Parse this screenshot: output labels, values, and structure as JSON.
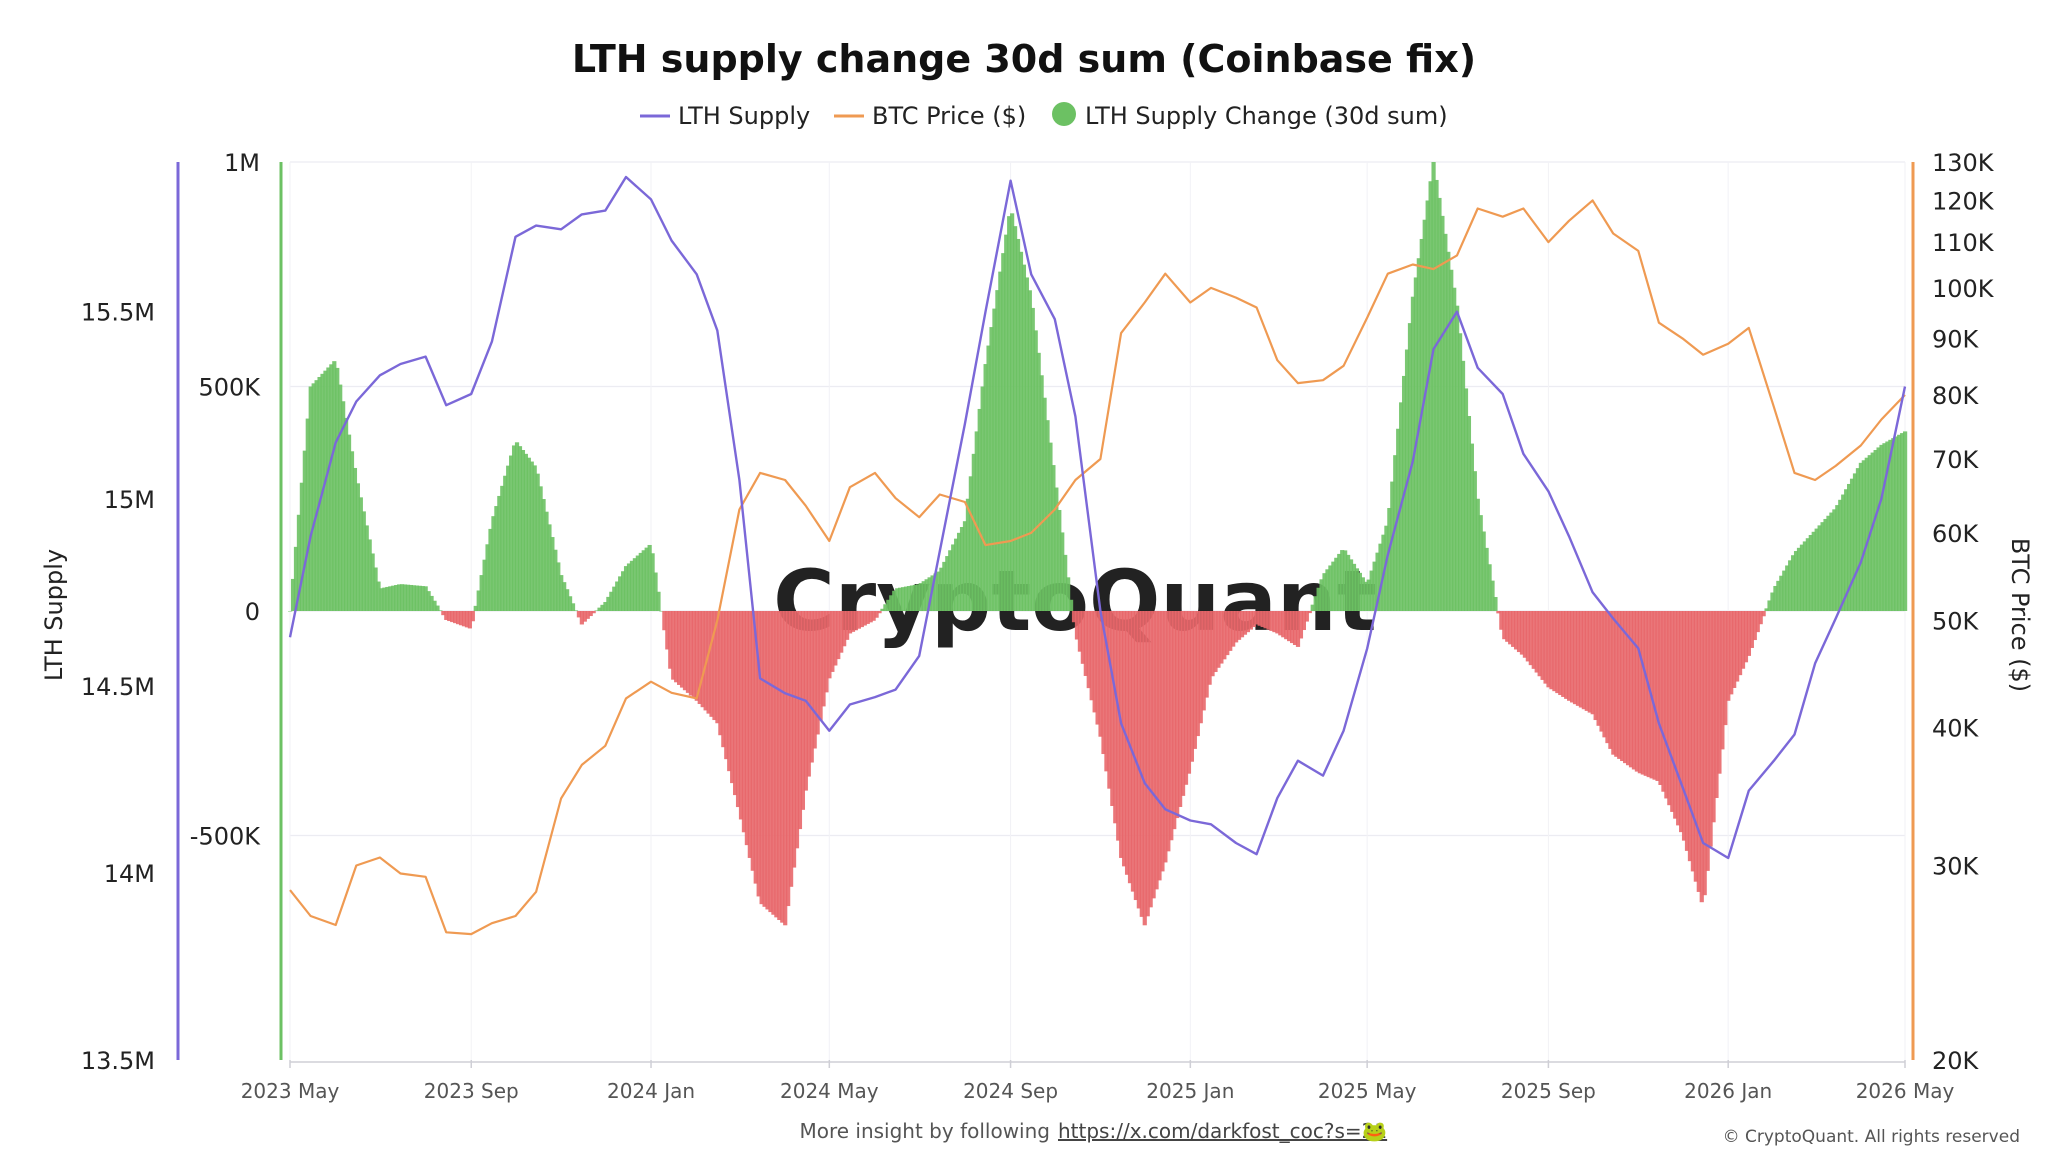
{
  "chart_data": {
    "type": "line",
    "title": "LTH supply change 30d sum (Coinbase fix)",
    "legend": [
      {
        "label": "LTH Supply",
        "color": "#7b68d8",
        "marker": "line"
      },
      {
        "label": "BTC Price ($)",
        "color": "#ef9a52",
        "marker": "line"
      },
      {
        "label": "LTH Supply Change (30d sum)",
        "color": "#6cc163",
        "marker": "circle"
      }
    ],
    "legend_position": "top-center",
    "y_left_outer": {
      "label": "LTH Supply",
      "ticks": [
        "15.5M",
        "15M",
        "14.5M",
        "14M",
        "13.5M"
      ],
      "range": [
        13500000,
        15900000
      ],
      "color": "#7b68d8"
    },
    "y_left_inner": {
      "ticks": [
        "1M",
        "500K",
        "0",
        "-500K"
      ],
      "range": [
        -1000000,
        1000000
      ],
      "color": "#6cc163"
    },
    "y_right": {
      "label": "BTC Price ($)",
      "scale": "log",
      "ticks": [
        "130K",
        "120K",
        "110K",
        "100K",
        "90K",
        "80K",
        "70K",
        "60K",
        "50K",
        "40K",
        "30K",
        "20K"
      ],
      "range": [
        20000,
        130000
      ],
      "color": "#ef9a52"
    },
    "x_ticks": [
      "2023 May",
      "2023 Sep",
      "2024 Jan",
      "2024 May",
      "2024 Sep",
      "2025 Jan",
      "2025 May",
      "2025 Sep",
      "2026 Jan",
      "2026 May"
    ],
    "grid": true,
    "x_dates": [
      "2023-05-01",
      "2023-05-15",
      "2023-06-01",
      "2023-06-15",
      "2023-07-01",
      "2023-07-15",
      "2023-08-01",
      "2023-08-15",
      "2023-09-01",
      "2023-09-15",
      "2023-10-01",
      "2023-10-15",
      "2023-11-01",
      "2023-11-15",
      "2023-12-01",
      "2023-12-15",
      "2024-01-01",
      "2024-01-15",
      "2024-02-01",
      "2024-02-15",
      "2024-03-01",
      "2024-03-15",
      "2024-04-01",
      "2024-04-15",
      "2024-05-01",
      "2024-05-15",
      "2024-06-01",
      "2024-06-15",
      "2024-07-01",
      "2024-07-15",
      "2024-08-01",
      "2024-08-15",
      "2024-09-01",
      "2024-09-15",
      "2024-10-01",
      "2024-10-15",
      "2024-11-01",
      "2024-11-15",
      "2024-12-01",
      "2024-12-15",
      "2025-01-01",
      "2025-01-15",
      "2025-02-01",
      "2025-02-15",
      "2025-03-01",
      "2025-03-15",
      "2025-04-01",
      "2025-04-15",
      "2025-05-01",
      "2025-05-15",
      "2025-06-01",
      "2025-06-15",
      "2025-07-01",
      "2025-07-15",
      "2025-08-01",
      "2025-08-15",
      "2025-09-01",
      "2025-09-15",
      "2025-10-01",
      "2025-10-15",
      "2025-11-01",
      "2025-11-15",
      "2025-12-01",
      "2025-12-15",
      "2026-01-01",
      "2026-01-15",
      "2026-02-01",
      "2026-02-15",
      "2026-03-01",
      "2026-03-15",
      "2026-04-01",
      "2026-04-15",
      "2026-05-01"
    ],
    "series": [
      {
        "name": "LTH Supply",
        "axis": "left",
        "values": [
          14630000,
          14900000,
          15150000,
          15260000,
          15330000,
          15360000,
          15380000,
          15250000,
          15280000,
          15420000,
          15700000,
          15730000,
          15720000,
          15760000,
          15770000,
          15860000,
          15800000,
          15690000,
          15600000,
          15450000,
          15050000,
          14520000,
          14480000,
          14460000,
          14380000,
          14450000,
          14470000,
          14490000,
          14580000,
          14860000,
          15200000,
          15500000,
          15850000,
          15600000,
          15480000,
          15220000,
          14700000,
          14400000,
          14240000,
          14170000,
          14140000,
          14130000,
          14080000,
          14050000,
          14200000,
          14300000,
          14260000,
          14380000,
          14600000,
          14850000,
          15100000,
          15400000,
          15500000,
          15350000,
          15280000,
          15120000,
          15020000,
          14900000,
          14750000,
          14680000,
          14600000,
          14400000,
          14230000,
          14080000,
          14040000,
          14220000,
          14300000,
          14370000,
          14560000,
          14680000,
          14830000,
          15000000,
          15300000
        ]
      },
      {
        "name": "BTC Price ($)",
        "axis": "right",
        "values": [
          28500,
          27000,
          26500,
          30000,
          30500,
          29500,
          29300,
          26100,
          26000,
          26600,
          27000,
          28400,
          34500,
          37000,
          38500,
          42500,
          44000,
          43000,
          42500,
          50000,
          63000,
          68000,
          67000,
          63500,
          59000,
          66000,
          68000,
          64500,
          62000,
          65000,
          64000,
          58500,
          59000,
          60000,
          63000,
          67000,
          70000,
          91000,
          97000,
          103000,
          97000,
          100000,
          98000,
          96000,
          86000,
          82000,
          82500,
          85000,
          94000,
          103000,
          105000,
          104000,
          107000,
          118000,
          116000,
          118000,
          110000,
          115000,
          120000,
          112000,
          108000,
          93000,
          90000,
          87000,
          89000,
          92000,
          78000,
          68000,
          67000,
          69000,
          72000,
          76000,
          80000
        ]
      },
      {
        "name": "LTH Supply Change (30d sum)",
        "axis": "inner",
        "values": [
          0,
          500000,
          560000,
          300000,
          50000,
          60000,
          55000,
          -20000,
          -40000,
          200000,
          380000,
          320000,
          80000,
          -30000,
          20000,
          100000,
          150000,
          -150000,
          -200000,
          -250000,
          -450000,
          -650000,
          -700000,
          -400000,
          -150000,
          -50000,
          -20000,
          50000,
          60000,
          90000,
          200000,
          550000,
          900000,
          700000,
          300000,
          -50000,
          -280000,
          -550000,
          -700000,
          -560000,
          -350000,
          -150000,
          -70000,
          -30000,
          -50000,
          -80000,
          80000,
          140000,
          60000,
          200000,
          700000,
          1000000,
          680000,
          250000,
          -60000,
          -100000,
          -170000,
          -200000,
          -230000,
          -320000,
          -360000,
          -380000,
          -500000,
          -660000,
          -200000,
          -100000,
          50000,
          130000,
          180000,
          230000,
          330000,
          370000,
          400000
        ]
      }
    ]
  },
  "watermark": "CryptoQuant",
  "footer": {
    "text": "More insight by following",
    "link": "https://x.com/darkfost_coc?s=21",
    "emoji": "🐸",
    "copyright": "© CryptoQuant. All rights reserved"
  }
}
